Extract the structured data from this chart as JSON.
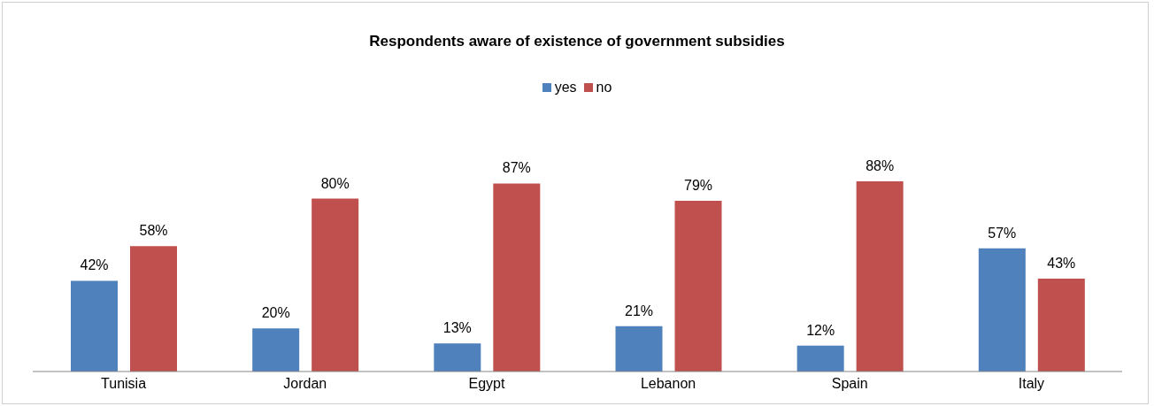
{
  "chart_data": {
    "type": "bar",
    "title": "Respondents aware of existence of government subsidies",
    "categories": [
      "Tunisia",
      "Jordan",
      "Egypt",
      "Lebanon",
      "Spain",
      "Italy"
    ],
    "legend": "top",
    "series": [
      {
        "name": "yes",
        "color": "#4f81bd",
        "values": [
          42,
          20,
          13,
          21,
          12,
          57
        ],
        "value_labels": [
          "42%",
          "20%",
          "13%",
          "21%",
          "12%",
          "57%"
        ]
      },
      {
        "name": "no",
        "color": "#c0504d",
        "values": [
          58,
          80,
          87,
          79,
          88,
          43
        ],
        "value_labels": [
          "58%",
          "80%",
          "87%",
          "79%",
          "88%",
          "43%"
        ]
      }
    ]
  }
}
